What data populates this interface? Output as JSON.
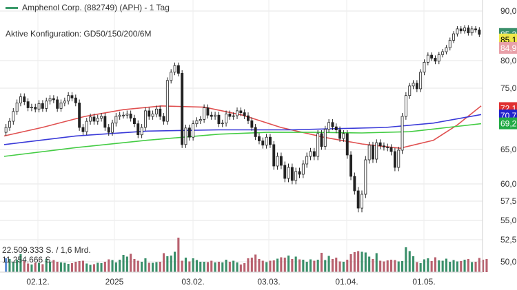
{
  "header": {
    "title": "Amphenol Corp. (882749) (APH) - 1 Tag",
    "config": "Aktive Konfiguration: GD50/150/200/6M",
    "volume_label_1": "22.509.333 S. / 1,6 Mrd.",
    "volume_label_2": "11.254.666 S."
  },
  "colors": {
    "up": "#3a8f6a",
    "down": "#b8606e",
    "ma50": "#e05050",
    "ma150": "#3a3ad8",
    "ma200": "#44cc44",
    "legend": "#3a9a6a"
  },
  "chart_data": {
    "type": "candlestick",
    "title": "Amphenol Corp. (882749) (APH) - 1 Tag",
    "x_ticks": [
      "02.12.",
      "2025",
      "03.02.",
      "03.03.",
      "01.04.",
      "01.05."
    ],
    "price_ticks": [
      "90,0",
      "80,0",
      "75,0",
      "65,0",
      "60,0",
      "57,5",
      "55,0",
      "52,5",
      "50,0"
    ],
    "ylim": [
      47.5,
      90.5
    ],
    "price_tags": [
      {
        "label": "85,3",
        "value": 85.3,
        "color": "#3a8f6a",
        "text_color": "#ffffff"
      },
      {
        "label": "85,1",
        "value": 84.2,
        "color": "#f0e84a",
        "text_color": "#000000"
      },
      {
        "label": "84,9",
        "value": 82.5,
        "color": "#e8a0a8",
        "text_color": "#ffffff"
      },
      {
        "label": "72,1",
        "value": 71.7,
        "color": "#e03030",
        "text_color": "#ffffff"
      },
      {
        "label": "70,7",
        "value": 70.5,
        "color": "#2222cc",
        "text_color": "#ffffff"
      },
      {
        "label": "69,2",
        "value": 69.2,
        "color": "#22aa44",
        "text_color": "#ffffff"
      }
    ],
    "series": [
      {
        "name": "GD50",
        "color": "#e05050",
        "x": [
          0,
          0.08,
          0.17,
          0.25,
          0.33,
          0.42,
          0.5,
          0.58,
          0.67,
          0.75,
          0.83,
          0.9,
          0.95,
          1.0
        ],
        "values": [
          67.2,
          68.6,
          70.4,
          71.5,
          72.1,
          71.9,
          70.6,
          68.6,
          67.0,
          65.9,
          65.2,
          66.5,
          69.0,
          72.1
        ]
      },
      {
        "name": "GD150",
        "color": "#3a3ad8",
        "x": [
          0,
          0.15,
          0.3,
          0.45,
          0.6,
          0.7,
          0.8,
          0.9,
          1.0
        ],
        "values": [
          65.8,
          67.2,
          68.0,
          68.2,
          68.2,
          68.4,
          68.6,
          69.3,
          70.7
        ]
      },
      {
        "name": "GD200",
        "color": "#44cc44",
        "x": [
          0,
          0.15,
          0.3,
          0.45,
          0.55,
          0.65,
          0.75,
          0.85,
          0.93,
          1.0
        ],
        "values": [
          64.0,
          65.3,
          66.5,
          67.5,
          67.8,
          67.8,
          67.7,
          67.9,
          68.6,
          69.2
        ]
      }
    ],
    "candles_open_close": [
      [
        67.8,
        68.6
      ],
      [
        68.6,
        69.6
      ],
      [
        69.6,
        71.2
      ],
      [
        71.2,
        72.6
      ],
      [
        72.6,
        73.6
      ],
      [
        73.6,
        72.8
      ],
      [
        72.8,
        71.8
      ],
      [
        71.8,
        71.9
      ],
      [
        71.9,
        71.6
      ],
      [
        71.6,
        72.5
      ],
      [
        72.5,
        71.7
      ],
      [
        71.7,
        72.9
      ],
      [
        72.9,
        73.3
      ],
      [
        73.3,
        73.1
      ],
      [
        73.1,
        71.7
      ],
      [
        71.7,
        72.6
      ],
      [
        72.6,
        72.9
      ],
      [
        72.9,
        73.8
      ],
      [
        73.8,
        73.4
      ],
      [
        73.4,
        72.6
      ],
      [
        72.6,
        68.6
      ],
      [
        68.6,
        67.9
      ],
      [
        67.9,
        69.6
      ],
      [
        69.6,
        70.3
      ],
      [
        70.3,
        69.6
      ],
      [
        69.6,
        70.1
      ],
      [
        70.1,
        70.4
      ],
      [
        70.4,
        68.6
      ],
      [
        68.6,
        67.8
      ],
      [
        67.8,
        69.3
      ],
      [
        69.3,
        70.4
      ],
      [
        70.4,
        70.6
      ],
      [
        70.6,
        70.6
      ],
      [
        70.6,
        70.8
      ],
      [
        70.8,
        70.1
      ],
      [
        70.1,
        69.2
      ],
      [
        69.2,
        67.4
      ],
      [
        67.4,
        68.6
      ],
      [
        68.6,
        71.3
      ],
      [
        71.3,
        70.4
      ],
      [
        70.4,
        70.8
      ],
      [
        70.8,
        71.6
      ],
      [
        71.6,
        70.4
      ],
      [
        70.4,
        69.6
      ],
      [
        69.6,
        76.4
      ],
      [
        76.4,
        77.9
      ],
      [
        77.9,
        79.1
      ],
      [
        79.1,
        77.7
      ],
      [
        77.7,
        65.8
      ],
      [
        65.8,
        68.5
      ],
      [
        68.5,
        67.0
      ],
      [
        67.0,
        69.2
      ],
      [
        69.2,
        69.7
      ],
      [
        69.7,
        69.9
      ],
      [
        69.9,
        71.8
      ],
      [
        71.8,
        70.6
      ],
      [
        70.6,
        70.4
      ],
      [
        70.4,
        70.6
      ],
      [
        70.6,
        69.2
      ],
      [
        69.2,
        69.3
      ],
      [
        69.3,
        70.8
      ],
      [
        70.8,
        70.4
      ],
      [
        70.4,
        70.5
      ],
      [
        70.5,
        71.3
      ],
      [
        71.3,
        71.0
      ],
      [
        71.0,
        70.5
      ],
      [
        70.5,
        69.7
      ],
      [
        69.7,
        68.6
      ],
      [
        68.6,
        67.1
      ],
      [
        67.1,
        66.4
      ],
      [
        66.4,
        65.7
      ],
      [
        65.7,
        67.0
      ],
      [
        67.0,
        65.8
      ],
      [
        65.8,
        62.6
      ],
      [
        62.6,
        64.0
      ],
      [
        64.0,
        62.7
      ],
      [
        62.7,
        60.8
      ],
      [
        60.8,
        62.4
      ],
      [
        62.4,
        60.5
      ],
      [
        60.5,
        61.8
      ],
      [
        61.8,
        61.4
      ],
      [
        61.4,
        62.9
      ],
      [
        62.9,
        64.0
      ],
      [
        64.0,
        64.7
      ],
      [
        64.7,
        64.0
      ],
      [
        64.0,
        67.6
      ],
      [
        67.6,
        65.5
      ],
      [
        65.5,
        68.3
      ],
      [
        68.3,
        69.4
      ],
      [
        69.4,
        68.7
      ],
      [
        68.7,
        68.2
      ],
      [
        68.2,
        66.8
      ],
      [
        66.8,
        67.6
      ],
      [
        67.6,
        64.2
      ],
      [
        64.2,
        61.1
      ],
      [
        61.1,
        59.0
      ],
      [
        59.0,
        56.6
      ],
      [
        56.6,
        58.5
      ],
      [
        58.5,
        63.5
      ],
      [
        63.5,
        65.7
      ],
      [
        65.7,
        63.6
      ],
      [
        63.6,
        66.1
      ],
      [
        66.1,
        65.6
      ],
      [
        65.6,
        65.4
      ],
      [
        65.4,
        65.3
      ],
      [
        65.3,
        64.7
      ],
      [
        64.7,
        62.4
      ],
      [
        62.4,
        64.9
      ],
      [
        64.9,
        70.4
      ],
      [
        70.4,
        73.8
      ],
      [
        73.8,
        75.4
      ],
      [
        75.4,
        75.9
      ],
      [
        75.9,
        74.9
      ],
      [
        74.9,
        77.9
      ],
      [
        77.9,
        79.7
      ],
      [
        79.7,
        81.1
      ],
      [
        81.1,
        80.5
      ],
      [
        80.5,
        79.9
      ],
      [
        79.9,
        81.2
      ],
      [
        81.2,
        81.8
      ],
      [
        81.8,
        82.6
      ],
      [
        82.6,
        84.1
      ],
      [
        84.1,
        85.4
      ],
      [
        85.4,
        86.4
      ],
      [
        86.4,
        86.0
      ],
      [
        86.0,
        86.6
      ],
      [
        86.6,
        85.6
      ],
      [
        85.6,
        86.4
      ],
      [
        86.4,
        86.2
      ],
      [
        86.2,
        85.3
      ]
    ],
    "volume_max": 1.0,
    "volumes": [
      0.4,
      0.38,
      0.3,
      0.36,
      0.52,
      0.32,
      0.25,
      0.22,
      0.27,
      0.27,
      0.23,
      0.38,
      0.3,
      0.35,
      0.3,
      0.28,
      0.27,
      0.24,
      0.26,
      0.3,
      0.32,
      0.33,
      0.25,
      0.21,
      0.23,
      0.27,
      0.26,
      0.3,
      0.37,
      0.35,
      0.28,
      0.36,
      0.5,
      0.45,
      0.53,
      0.38,
      0.33,
      0.3,
      0.4,
      0.27,
      0.27,
      0.29,
      0.3,
      0.55,
      0.46,
      0.48,
      0.59,
      1.0,
      0.33,
      0.42,
      0.31,
      0.4,
      0.35,
      0.3,
      0.3,
      0.29,
      0.33,
      0.28,
      0.3,
      0.28,
      0.36,
      0.3,
      0.33,
      0.28,
      0.22,
      0.26,
      0.4,
      0.42,
      0.51,
      0.38,
      0.33,
      0.29,
      0.33,
      0.34,
      0.39,
      0.43,
      0.42,
      0.48,
      0.38,
      0.45,
      0.37,
      0.36,
      0.3,
      0.37,
      0.33,
      0.36,
      0.56,
      0.35,
      0.47,
      0.38,
      0.42,
      0.31,
      0.3,
      0.36,
      0.52,
      0.58,
      0.61,
      0.59,
      0.57,
      0.45,
      0.38,
      0.55,
      0.33,
      0.31,
      0.34,
      0.36,
      0.35,
      0.31,
      0.32,
      0.72,
      0.61,
      0.46,
      0.29,
      0.26,
      0.37,
      0.4,
      0.32,
      0.43,
      0.34,
      0.33,
      0.39,
      0.3,
      0.35,
      0.31,
      0.32,
      0.36,
      0.38,
      0.29,
      0.3,
      0.41,
      0.36,
      0.38
    ]
  }
}
